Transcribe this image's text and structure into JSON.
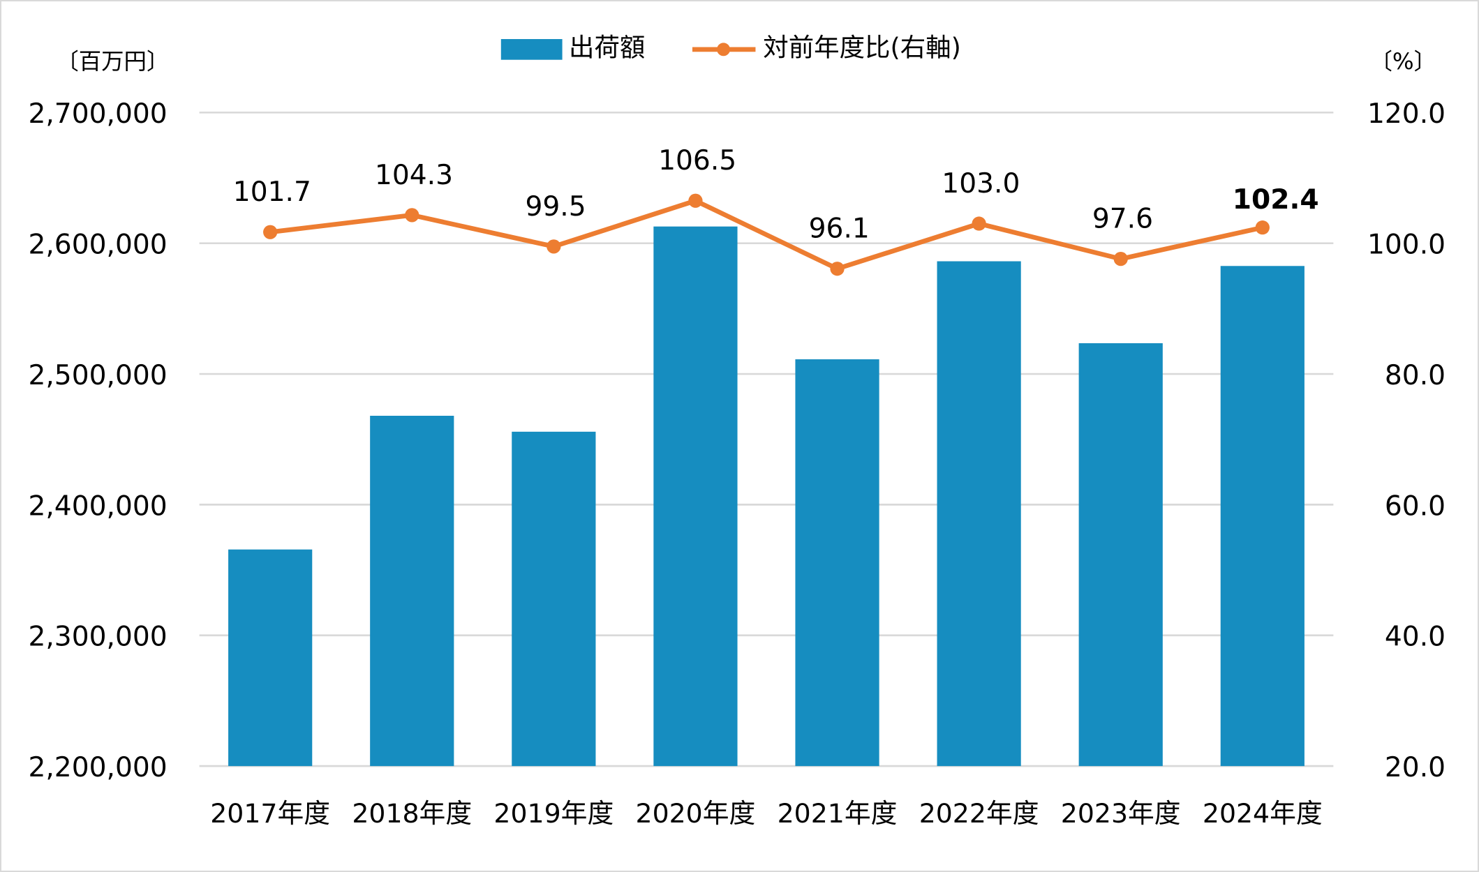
{
  "chart_data": {
    "type": "bar+line",
    "categories": [
      "2017年度",
      "2018年度",
      "2019年度",
      "2020年度",
      "2021年度",
      "2022年度",
      "2023年度",
      "2024年度"
    ],
    "series": [
      {
        "name": "出荷額",
        "type": "bar",
        "axis": "left",
        "color": "#168dc0",
        "values": [
          2365700,
          2468000,
          2455800,
          2612800,
          2511200,
          2586200,
          2523500,
          2582600
        ]
      },
      {
        "name": "対前年度比(右軸)",
        "type": "line",
        "axis": "right",
        "color": "#ed7d31",
        "values": [
          101.7,
          104.3,
          99.5,
          106.5,
          96.1,
          103.0,
          97.6,
          102.4
        ],
        "labels": [
          "101.7",
          "104.3",
          "99.5",
          "106.5",
          "96.1",
          "103.0",
          "97.6",
          "102.4"
        ],
        "highlight_last_color": "#c00000"
      }
    ],
    "left_axis": {
      "unit": "〔百万円〕",
      "ylim": [
        2200000,
        2700000
      ],
      "ticks": [
        "2,200,000",
        "2,300,000",
        "2,400,000",
        "2,500,000",
        "2,600,000",
        "2,700,000"
      ]
    },
    "right_axis": {
      "unit": "〔%〕",
      "ylim": [
        20,
        120
      ],
      "ticks": [
        "20.0",
        "40.0",
        "60.0",
        "80.0",
        "100.0",
        "120.0"
      ]
    },
    "grid": true,
    "legend": "top-center"
  }
}
